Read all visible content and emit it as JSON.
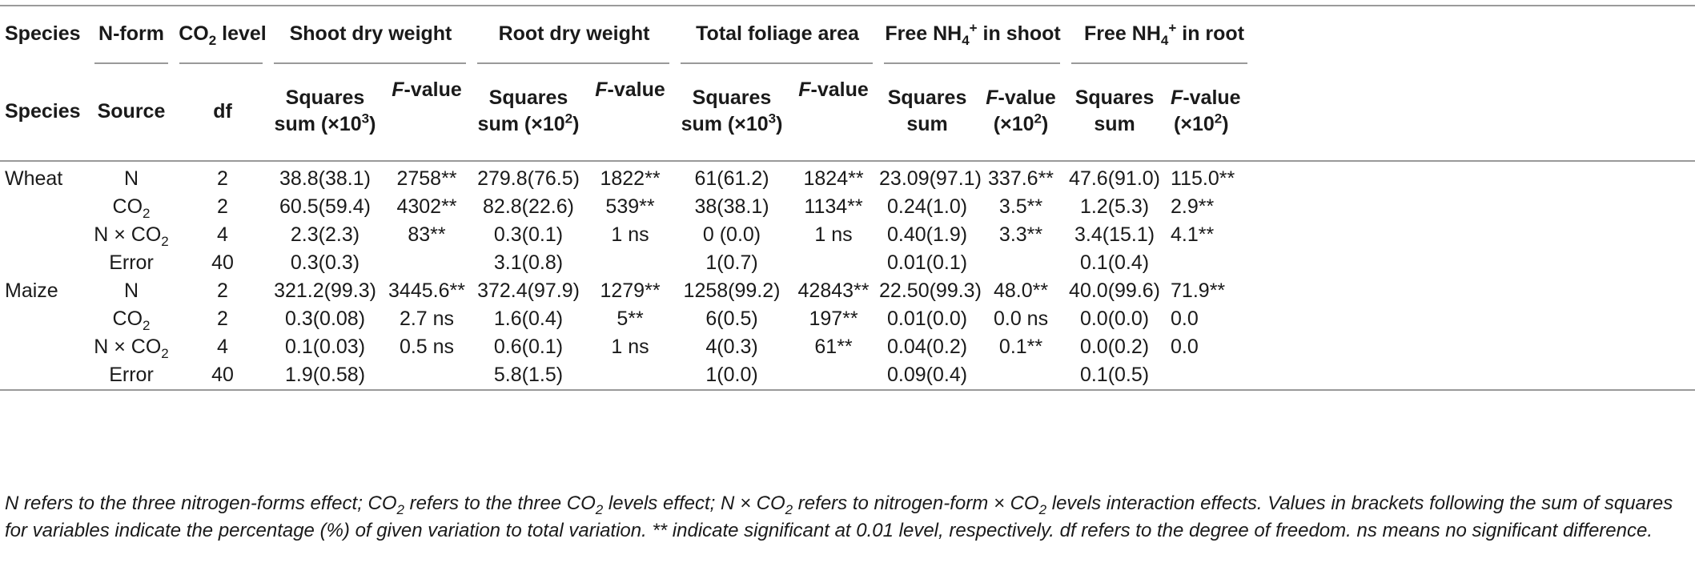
{
  "header_row1": {
    "species": "Species",
    "nform": "N-form",
    "co2_pre": "CO",
    "co2_sub": "2",
    "co2_post": " level",
    "shoot_dw": "Shoot dry weight",
    "root_dw": "Root dry weight",
    "foliage": "Total foliage area",
    "nh4_shoot_pre": "Free NH",
    "nh4_shoot_sub": "4",
    "nh4_shoot_sup": "+",
    "nh4_shoot_post": " in shoot",
    "nh4_root_pre": "Free NH",
    "nh4_root_sub": "4",
    "nh4_root_sup": "+",
    "nh4_root_post": " in root"
  },
  "header_row2": {
    "species": "Species",
    "source": "Source",
    "df": "df",
    "ss_line1": "Squares",
    "ss_x103": "sum (×10",
    "exp3": "3",
    "exp2": "2",
    "close": ")",
    "ss_x102": "sum (×10",
    "f_italic": "F",
    "f_rest": "-value",
    "ss_plain": "sum",
    "x102": "(×10"
  },
  "rows": [
    {
      "species": "Wheat",
      "source_pre": "N",
      "source_sub": "",
      "source_post": "",
      "df": "2",
      "c1": "38.8(38.1)",
      "c2": "2758**",
      "c3": "279.8(76.5)",
      "c4": "1822**",
      "c5": "61(61.2)",
      "c6": "1824**",
      "c7": "23.09(97.1)",
      "c8": "337.6**",
      "c9": "47.6(91.0)",
      "c10": "115.0**"
    },
    {
      "species": "",
      "source_pre": "CO",
      "source_sub": "2",
      "source_post": "",
      "df": "2",
      "c1": "60.5(59.4)",
      "c2": "4302**",
      "c3": "82.8(22.6)",
      "c4": "539**",
      "c5": "38(38.1)",
      "c6": "1134**",
      "c7": "0.24(1.0)",
      "c8": "3.5**",
      "c9": "1.2(5.3)",
      "c10": "2.9**"
    },
    {
      "species": "",
      "source_pre": "N × CO",
      "source_sub": "2",
      "source_post": "",
      "df": "4",
      "c1": "2.3(2.3)",
      "c2": "83**",
      "c3": "0.3(0.1)",
      "c4": "1 ns",
      "c5": "0 (0.0)",
      "c6": "1 ns",
      "c7": "0.40(1.9)",
      "c8": "3.3**",
      "c9": "3.4(15.1)",
      "c10": "4.1**"
    },
    {
      "species": "",
      "source_pre": "Error",
      "source_sub": "",
      "source_post": "",
      "df": "40",
      "c1": "0.3(0.3)",
      "c2": "",
      "c3": "3.1(0.8)",
      "c4": "",
      "c5": "1(0.7)",
      "c6": "",
      "c7": "0.01(0.1)",
      "c8": "",
      "c9": "0.1(0.4)",
      "c10": ""
    },
    {
      "species": "Maize",
      "source_pre": "N",
      "source_sub": "",
      "source_post": "",
      "df": "2",
      "c1": "321.2(99.3)",
      "c2": "3445.6**",
      "c3": "372.4(97.9)",
      "c4": "1279**",
      "c5": "1258(99.2)",
      "c6": "42843**",
      "c7": "22.50(99.3)",
      "c8": "48.0**",
      "c9": "40.0(99.6)",
      "c10": "71.9**"
    },
    {
      "species": "",
      "source_pre": "CO",
      "source_sub": "2",
      "source_post": "",
      "df": "2",
      "c1": "0.3(0.08)",
      "c2": "2.7 ns",
      "c3": "1.6(0.4)",
      "c4": "5**",
      "c5": "6(0.5)",
      "c6": "197**",
      "c7": "0.01(0.0)",
      "c8": "0.0 ns",
      "c9": "0.0(0.0)",
      "c10": "0.0"
    },
    {
      "species": "",
      "source_pre": "N × CO",
      "source_sub": "2",
      "source_post": "",
      "df": "4",
      "c1": "0.1(0.03)",
      "c2": "0.5 ns",
      "c3": "0.6(0.1)",
      "c4": "1 ns",
      "c5": "4(0.3)",
      "c6": "61**",
      "c7": "0.04(0.2)",
      "c8": "0.1**",
      "c9": "0.0(0.2)",
      "c10": "0.0"
    },
    {
      "species": "",
      "source_pre": "Error",
      "source_sub": "",
      "source_post": "",
      "df": "40",
      "c1": "1.9(0.58)",
      "c2": "",
      "c3": "5.8(1.5)",
      "c4": "",
      "c5": "1(0.0)",
      "c6": "",
      "c7": "0.09(0.4)",
      "c8": "",
      "c9": "0.1(0.5)",
      "c10": ""
    }
  ],
  "footnote": "N refers to the three nitrogen-forms effect; CO2 refers to the three CO2 levels effect; N × CO2 refers to nitrogen-form × CO2 levels interaction effects. Values in brackets following the sum of squares for variables indicate the percentage (%) of given variation to total variation. ** indicate significant at 0.01 level, respectively. df refers to the degree of freedom. ns means no significant difference.",
  "footnote_parts": {
    "p1": "N refers to the three nitrogen-forms effect; CO",
    "s1": "2",
    "p2": " refers to the three CO",
    "s2": "2",
    "p3": " levels effect; N × CO",
    "s3": "2",
    "p4": " refers to nitrogen-form × CO",
    "s4": "2",
    "p5": " levels interaction effects. Values in brackets following the sum of squares for variables indicate the percentage (%) of given variation to total variation. ** indicate significant at 0.01 level, respectively. df refers to the degree of freedom. ns means no significant difference."
  }
}
